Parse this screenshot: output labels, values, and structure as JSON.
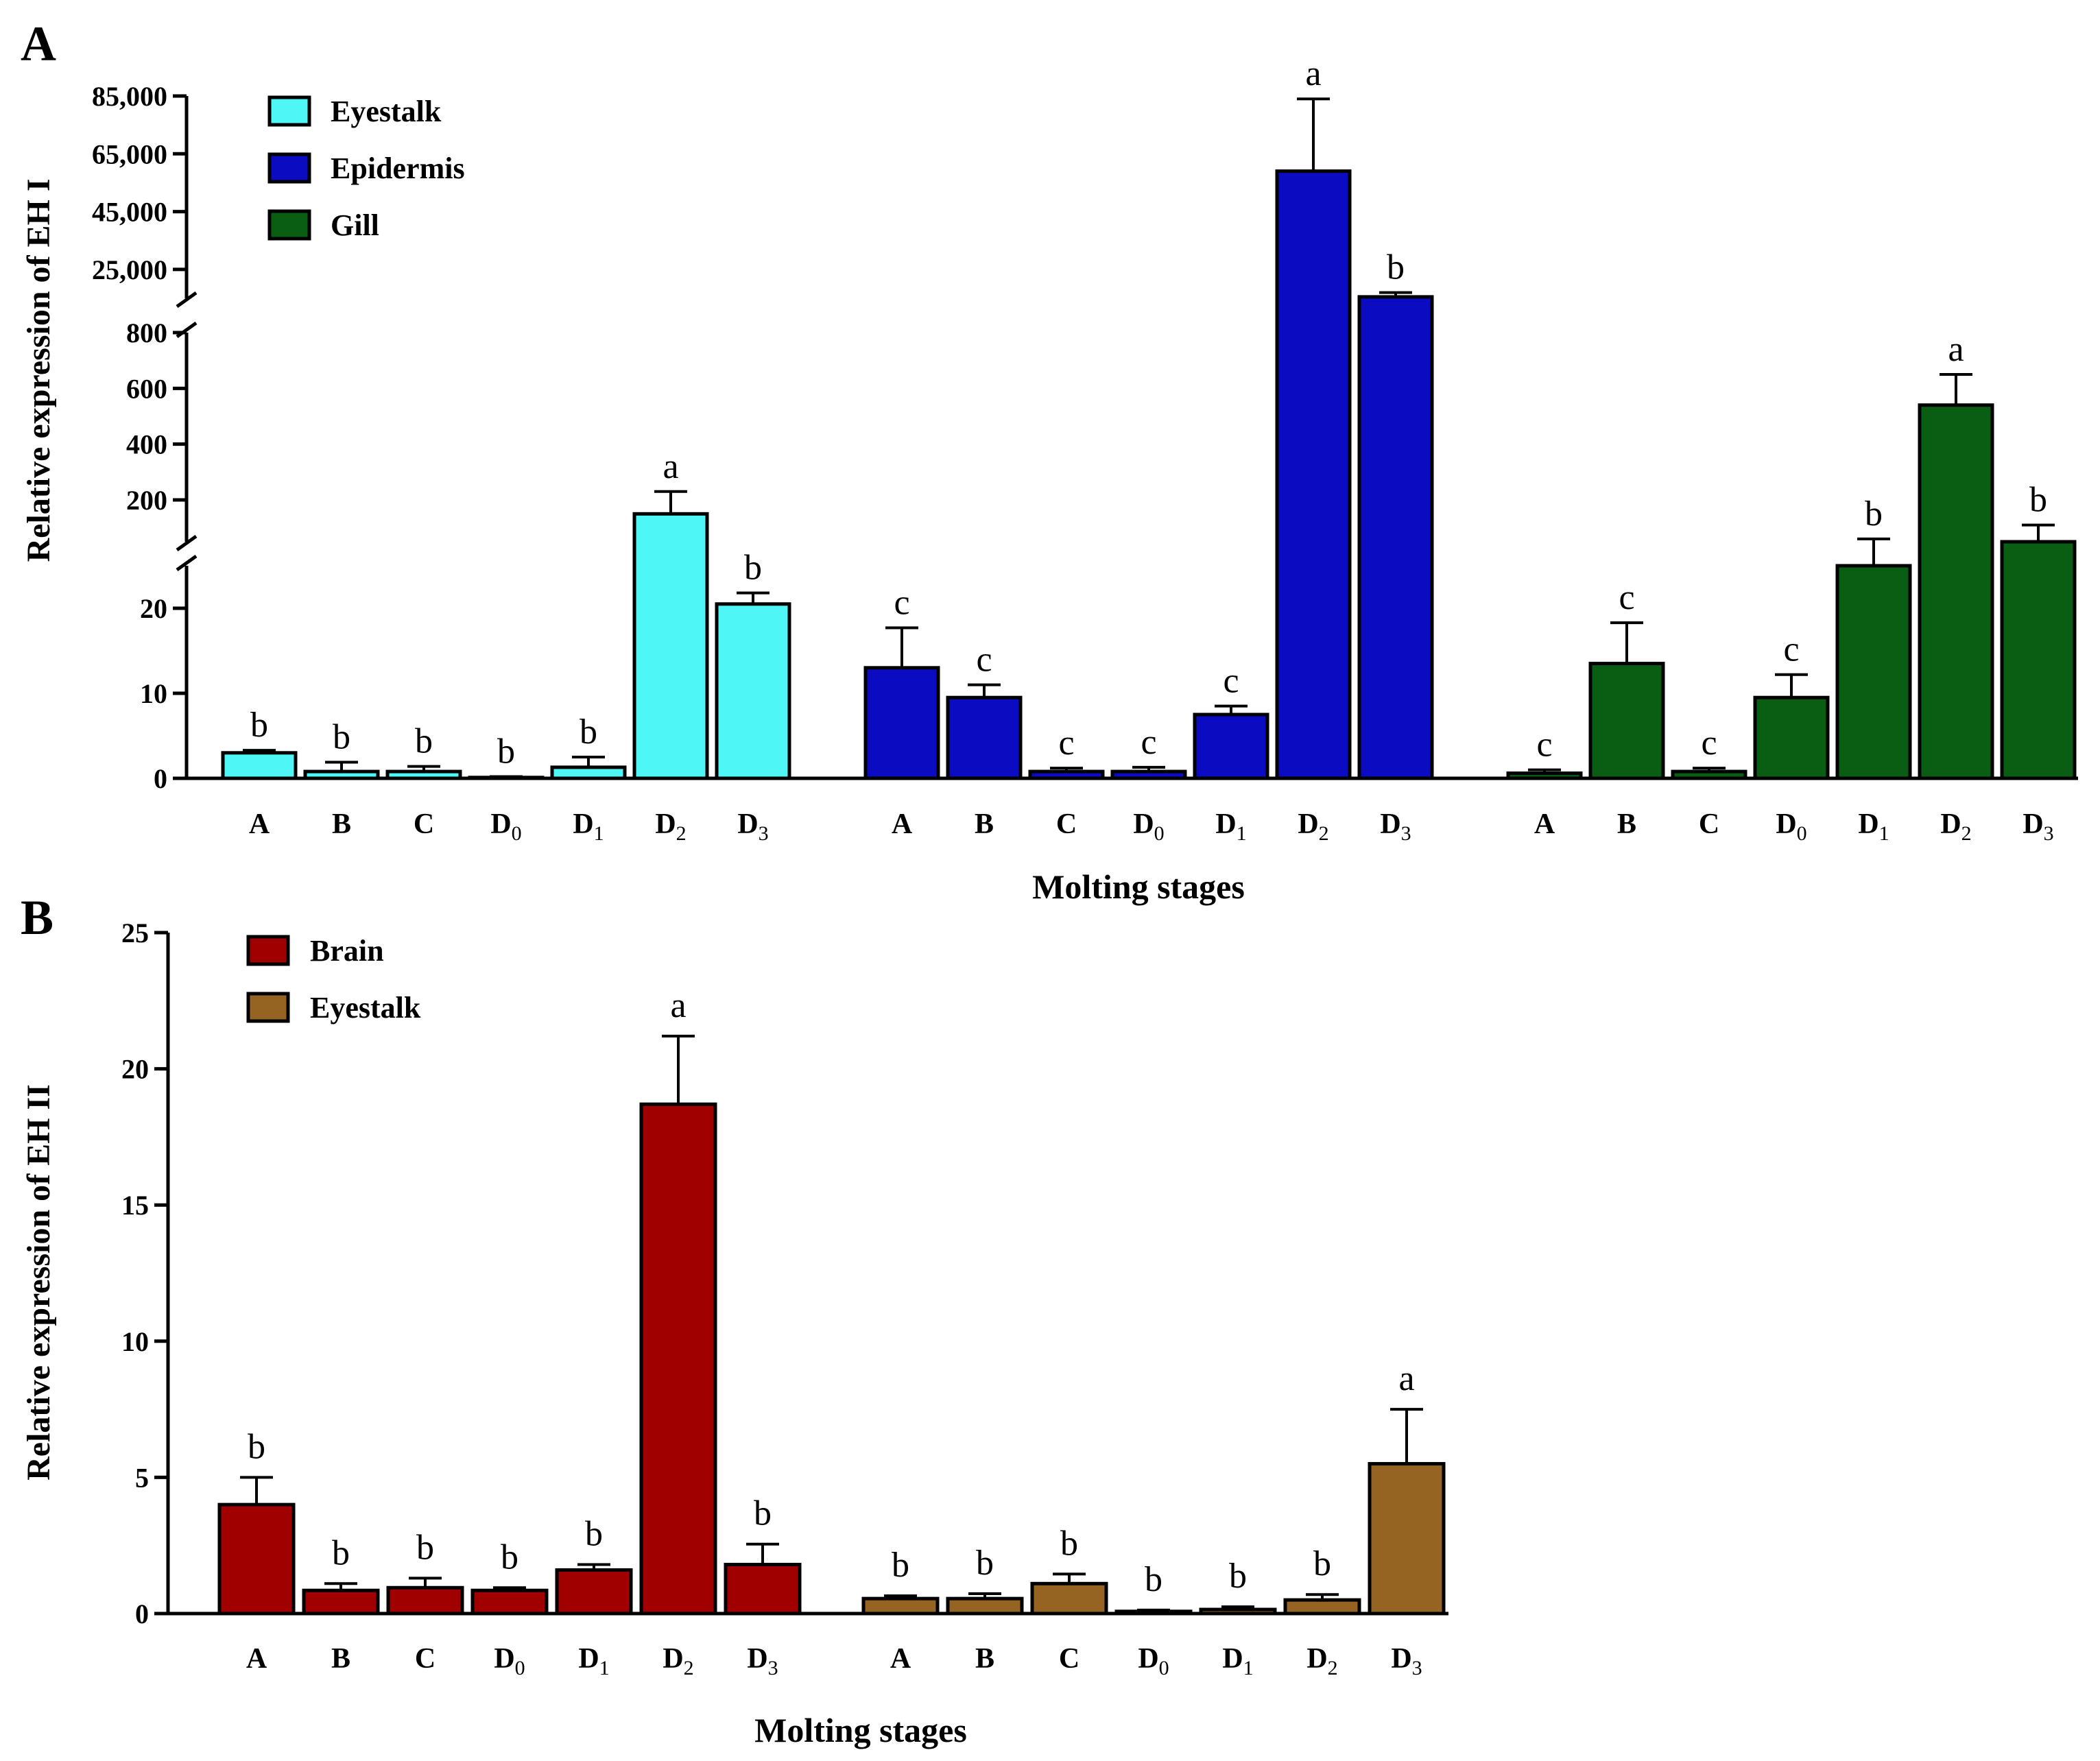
{
  "panels": [
    {
      "letter": "A",
      "ylabel": "Relative expression of EH I",
      "xlabel": "Molting stages",
      "legend": [
        {
          "name": "Eyestalk",
          "color": "#4ef6f6"
        },
        {
          "name": "Epidermis",
          "color": "#0b0bc2"
        },
        {
          "name": "Gill",
          "color": "#0a5e14"
        }
      ],
      "y_segments": [
        {
          "range": [
            0,
            25
          ],
          "ticks": [
            "0",
            "10",
            "20"
          ],
          "tick_values": [
            0,
            10,
            20
          ]
        },
        {
          "range": [
            50,
            800
          ],
          "ticks": [
            "200",
            "400",
            "600",
            "800"
          ],
          "tick_values": [
            200,
            400,
            600,
            800
          ]
        },
        {
          "range": [
            15000,
            85000
          ],
          "ticks": [
            "25,000",
            "45,000",
            "65,000",
            "85,000"
          ],
          "tick_values": [
            25000,
            45000,
            65000,
            85000
          ]
        }
      ]
    },
    {
      "letter": "B",
      "ylabel": "Relative expression of EH II",
      "xlabel": "Molting stages",
      "legend": [
        {
          "name": "Brain",
          "color": "#a00000"
        },
        {
          "name": "Eyestalk",
          "color": "#956422"
        }
      ],
      "y_ticks": [
        "0",
        "5",
        "10",
        "15",
        "20",
        "25"
      ],
      "y_tick_values": [
        0,
        5,
        10,
        15,
        20,
        25
      ]
    }
  ],
  "stages": [
    {
      "base": "A",
      "sub": ""
    },
    {
      "base": "B",
      "sub": ""
    },
    {
      "base": "C",
      "sub": ""
    },
    {
      "base": "D",
      "sub": "0"
    },
    {
      "base": "D",
      "sub": "1"
    },
    {
      "base": "D",
      "sub": "2"
    },
    {
      "base": "D",
      "sub": "3"
    }
  ],
  "chart_data": [
    {
      "type": "bar",
      "panel": "A",
      "ylabel": "Relative expression of EH I",
      "xlabel": "Molting stages",
      "y_axis": "broken",
      "legend_position": "top-left",
      "categories": [
        "A",
        "B",
        "C",
        "D0",
        "D1",
        "D2",
        "D3"
      ],
      "series": [
        {
          "name": "Eyestalk",
          "color": "#4ef6f6",
          "values": [
            3,
            0.8,
            0.8,
            0.1,
            1.3,
            150,
            20.5
          ],
          "errors": [
            0.3,
            1.1,
            0.6,
            0.1,
            1.2,
            80,
            1.3
          ],
          "letters": [
            "b",
            "b",
            "b",
            "b",
            "b",
            "a",
            "b"
          ]
        },
        {
          "name": "Epidermis",
          "color": "#0b0bc2",
          "values": [
            13,
            9.5,
            0.8,
            0.8,
            7.5,
            59000,
            15500
          ],
          "errors": [
            4.7,
            1.5,
            0.4,
            0.5,
            1,
            25000,
            1500
          ],
          "letters": [
            "c",
            "c",
            "c",
            "c",
            "c",
            "a",
            "b"
          ]
        },
        {
          "name": "Gill",
          "color": "#0a5e14",
          "values": [
            0.6,
            13.5,
            0.8,
            9.5,
            40,
            540,
            50
          ],
          "errors": [
            0.4,
            4.8,
            0.4,
            2.7,
            20,
            110,
            60
          ],
          "letters": [
            "c",
            "c",
            "c",
            "c",
            "b",
            "a",
            "b"
          ]
        }
      ]
    },
    {
      "type": "bar",
      "panel": "B",
      "ylabel": "Relative expression of EH II",
      "xlabel": "Molting stages",
      "ylim": [
        0,
        25
      ],
      "legend_position": "top-left",
      "categories": [
        "A",
        "B",
        "C",
        "D0",
        "D1",
        "D2",
        "D3"
      ],
      "series": [
        {
          "name": "Brain",
          "color": "#a00000",
          "values": [
            4,
            0.85,
            0.95,
            0.85,
            1.6,
            18.7,
            1.8
          ],
          "errors": [
            1,
            0.25,
            0.35,
            0.1,
            0.2,
            2.5,
            0.75
          ],
          "letters": [
            "b",
            "b",
            "b",
            "b",
            "b",
            "a",
            "b"
          ]
        },
        {
          "name": "Eyestalk",
          "color": "#956422",
          "values": [
            0.55,
            0.55,
            1.1,
            0.08,
            0.15,
            0.5,
            5.5
          ],
          "errors": [
            0.1,
            0.18,
            0.35,
            0.05,
            0.1,
            0.2,
            2
          ],
          "letters": [
            "b",
            "b",
            "b",
            "b",
            "b",
            "b",
            "a"
          ]
        }
      ]
    }
  ]
}
